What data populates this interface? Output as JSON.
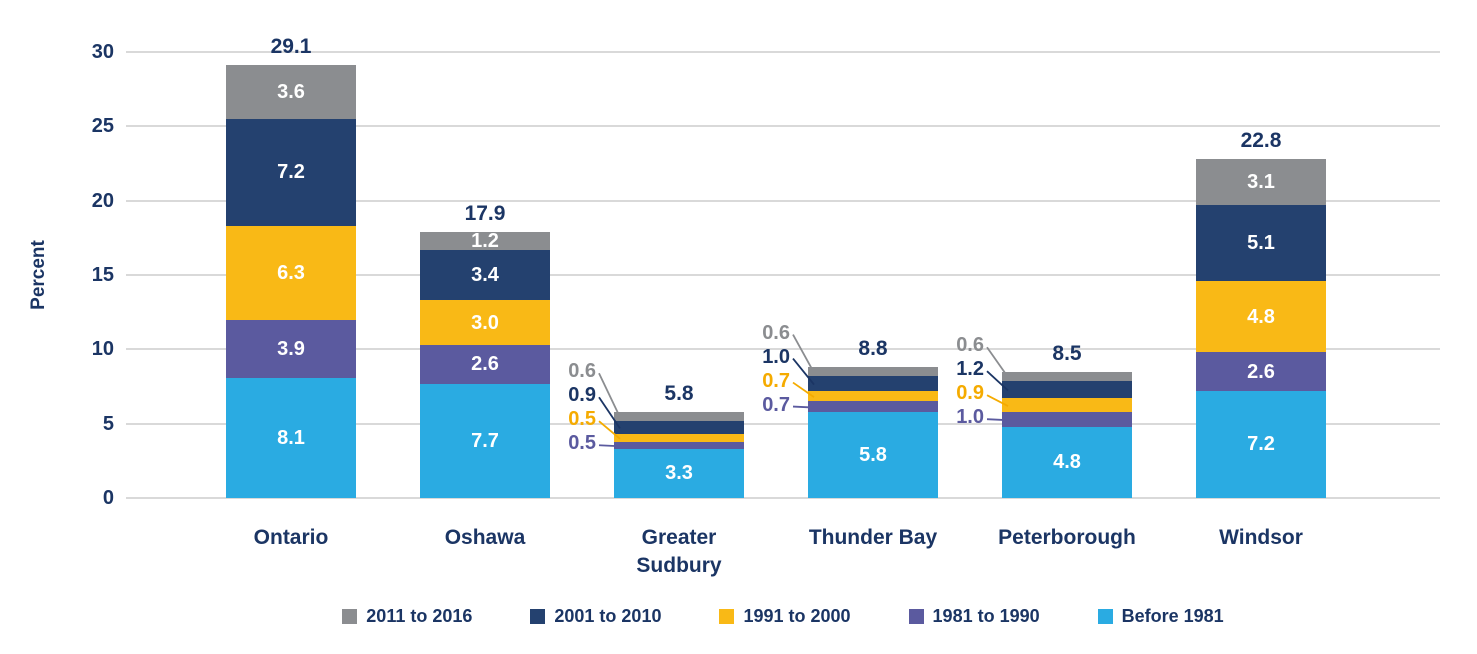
{
  "chart_data": {
    "type": "bar",
    "stacked": true,
    "title": "",
    "xlabel": "",
    "ylabel": "Percent",
    "ylim": [
      0,
      30
    ],
    "yticks": [
      0,
      5,
      10,
      15,
      20,
      25,
      30
    ],
    "grid": "horizontal",
    "legend_position": "bottom",
    "gridline_color": "#D9D9D9",
    "text_color": "#1B3564",
    "inside_label_color": "#FFFFFF",
    "categories": [
      "Ontario",
      "Oshawa",
      "Greater Sudbury",
      "Thunder Bay",
      "Peterborough",
      "Windsor"
    ],
    "category_label_lines": [
      [
        "Ontario"
      ],
      [
        "Oshawa"
      ],
      [
        "Greater",
        "Sudbury"
      ],
      [
        "Thunder Bay"
      ],
      [
        "Peterborough"
      ],
      [
        "Windsor"
      ]
    ],
    "totals": [
      29.1,
      17.9,
      5.8,
      8.8,
      8.5,
      22.8
    ],
    "series_bottom_to_top": [
      {
        "name": "Before 1981",
        "color": "#2AABE2",
        "label_color": "#2AABE2",
        "values": [
          8.1,
          7.7,
          3.3,
          5.8,
          4.8,
          7.2
        ]
      },
      {
        "name": "1981 to 1990",
        "color": "#5B5A9F",
        "label_color": "#5B5A9F",
        "values": [
          3.9,
          2.6,
          0.5,
          0.7,
          1.0,
          2.6
        ]
      },
      {
        "name": "1991 to 2000",
        "color": "#F9B916",
        "label_color": "#F5AB00",
        "values": [
          6.3,
          3.0,
          0.5,
          0.7,
          0.9,
          4.8
        ]
      },
      {
        "name": "2001 to 2010",
        "color": "#24416F",
        "label_color": "#1B3564",
        "values": [
          7.2,
          3.4,
          0.9,
          1.0,
          1.2,
          5.1
        ]
      },
      {
        "name": "2011 to 2016",
        "color": "#8B8D90",
        "label_color": "#8B8D90",
        "values": [
          3.6,
          1.2,
          0.6,
          0.6,
          0.6,
          3.1
        ]
      }
    ],
    "legend_order": [
      "2011 to 2016",
      "2001 to 2010",
      "1991 to 2000",
      "1981 to 1990",
      "Before 1981"
    ],
    "callout_category_indices": [
      2,
      3,
      4
    ]
  }
}
